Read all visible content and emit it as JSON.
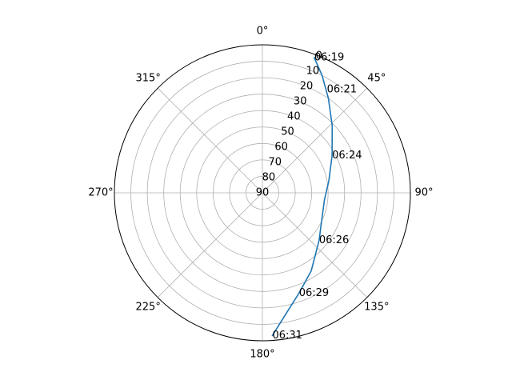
{
  "chart_data": {
    "type": "line",
    "projection": "polar",
    "theta_zero_location": "N",
    "theta_direction": "clockwise",
    "theta_tick_labels": [
      "0°",
      "45°",
      "90°",
      "135°",
      "180°",
      "225°",
      "270°",
      "315°"
    ],
    "theta_ticks_deg": [
      0,
      45,
      90,
      135,
      180,
      225,
      270,
      315
    ],
    "r_axis": "elevation",
    "r_range": [
      0,
      90
    ],
    "r_inverted": true,
    "r_tick_labels": [
      "0",
      "10",
      "20",
      "30",
      "40",
      "50",
      "60",
      "70",
      "80",
      "90"
    ],
    "r_ticks": [
      0,
      10,
      20,
      30,
      40,
      50,
      60,
      70,
      80,
      90
    ],
    "grid": true,
    "series": [
      {
        "color": "#1f77b4",
        "azimuth_deg": [
          21,
          27,
          35,
          46,
          62,
          80,
          96,
          111,
          130,
          148,
          160,
          169,
          176
        ],
        "elevation_deg": [
          2,
          10,
          20,
          31,
          42,
          49,
          52,
          51,
          45,
          34,
          25,
          15,
          3
        ]
      }
    ],
    "annotations": [
      {
        "text": "06:19",
        "azimuth_deg": 21,
        "elevation_deg": 2
      },
      {
        "text": "06:21",
        "azimuth_deg": 32,
        "elevation_deg": 16
      },
      {
        "text": "06:24",
        "azimuth_deg": 62,
        "elevation_deg": 42
      },
      {
        "text": "06:26",
        "azimuth_deg": 130,
        "elevation_deg": 45
      },
      {
        "text": "06:29",
        "azimuth_deg": 160,
        "elevation_deg": 25
      },
      {
        "text": "06:31",
        "azimuth_deg": 176,
        "elevation_deg": 3
      }
    ]
  }
}
